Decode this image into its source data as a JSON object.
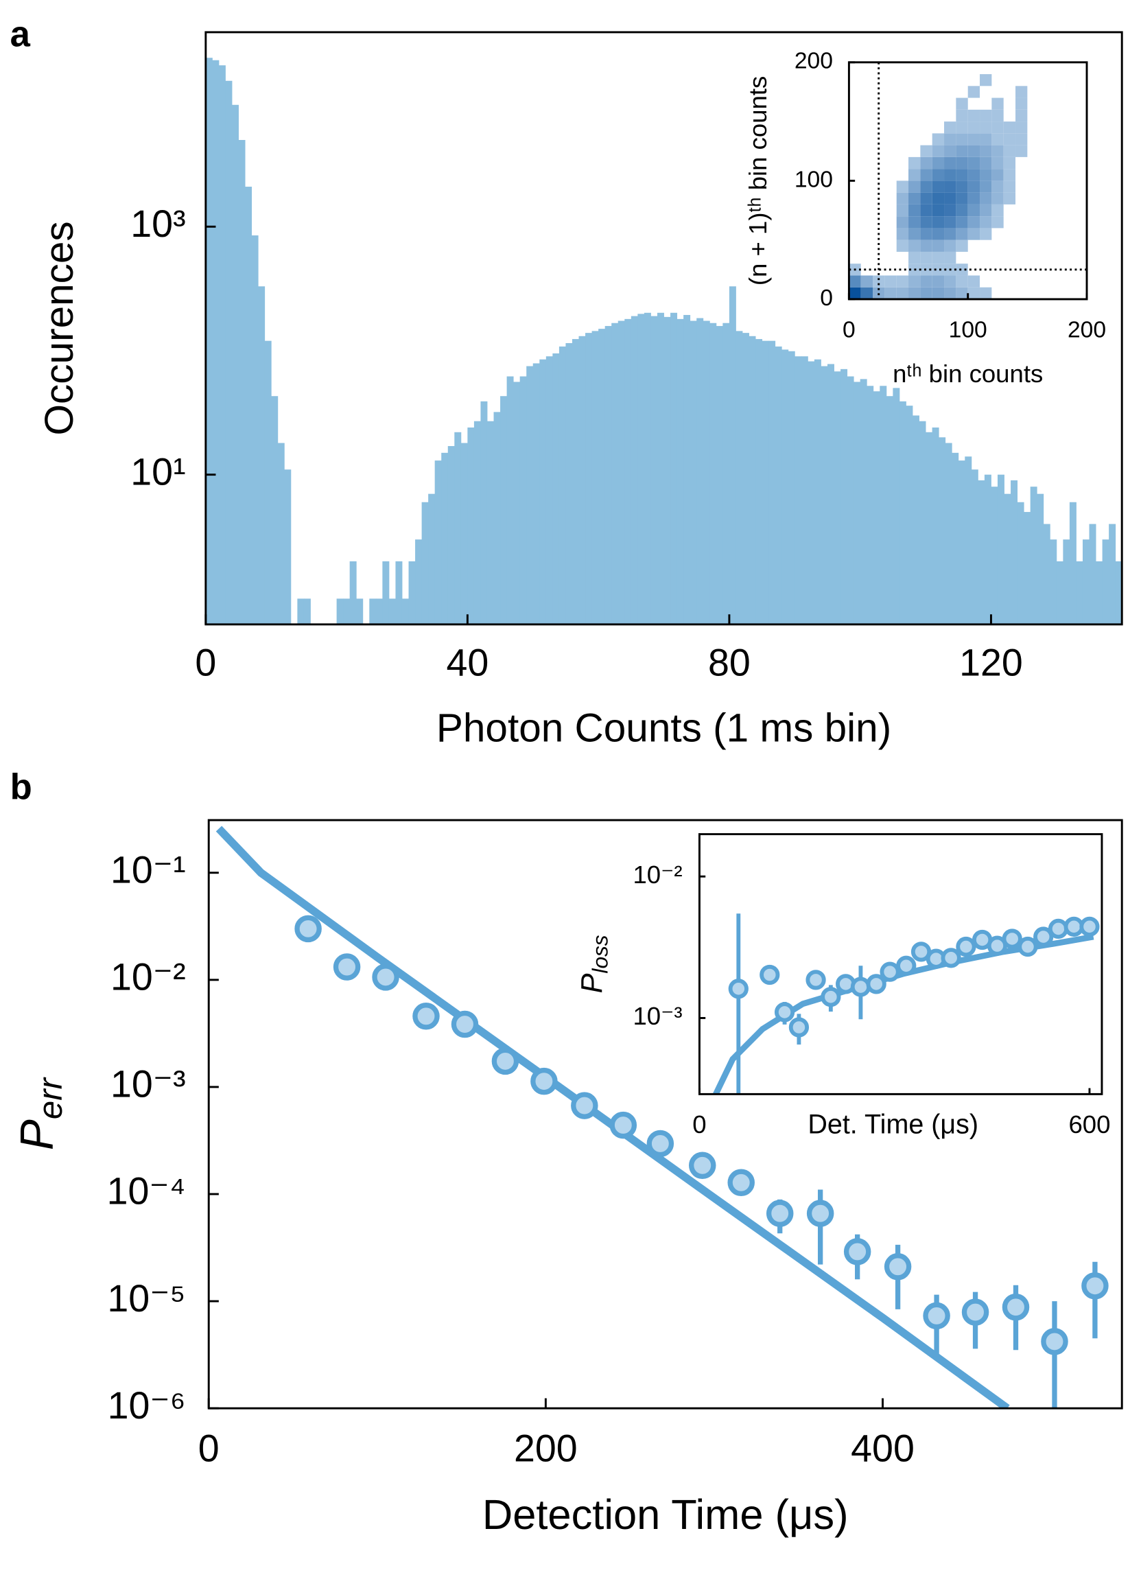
{
  "chart_data": [
    {
      "type": "histogram",
      "panel": "a",
      "xlabel": "Photon Counts (1 ms bin)",
      "ylabel": "Occurences",
      "yscale": "log",
      "color": "#8bbfdf",
      "bins": [
        0,
        1,
        2,
        3,
        4,
        5,
        6,
        7,
        8,
        9,
        10,
        11,
        12,
        13,
        14,
        15,
        16,
        17,
        18,
        19,
        20,
        21,
        22,
        23,
        24,
        25,
        26,
        27,
        28,
        29,
        30,
        31,
        32,
        33,
        34,
        35,
        36,
        37,
        38,
        39,
        40,
        41,
        42,
        43,
        44,
        45,
        46,
        47,
        48,
        49,
        50,
        51,
        52,
        53,
        54,
        55,
        56,
        57,
        58,
        59,
        60,
        61,
        62,
        63,
        64,
        65,
        66,
        67,
        68,
        69,
        70,
        71,
        72,
        73,
        74,
        75,
        76,
        77,
        78,
        79,
        80,
        81,
        82,
        83,
        84,
        85,
        86,
        87,
        88,
        89,
        90,
        91,
        92,
        93,
        94,
        95,
        96,
        97,
        98,
        99,
        100,
        101,
        102,
        103,
        104,
        105,
        106,
        107,
        108,
        109,
        110,
        111,
        112,
        113,
        114,
        115,
        116,
        117,
        118,
        119,
        120,
        121,
        122,
        123,
        124,
        125,
        126,
        127,
        128,
        129,
        130,
        131,
        132,
        133,
        134,
        135,
        136,
        137,
        138,
        139,
        140
      ],
      "counts": [
        23000,
        22000,
        20000,
        15000,
        9600,
        5000,
        2100,
        850,
        330,
        120,
        43,
        18,
        11,
        0,
        1,
        1,
        0,
        0,
        0,
        0,
        1,
        1,
        2,
        1,
        0,
        1,
        1,
        2,
        1,
        2,
        1,
        2,
        3,
        6,
        7,
        13,
        15,
        17,
        22,
        18,
        24,
        27,
        39,
        27,
        32,
        43,
        62,
        56,
        62,
        75,
        79,
        85,
        90,
        95,
        108,
        115,
        124,
        131,
        139,
        144,
        150,
        158,
        167,
        174,
        180,
        190,
        198,
        202,
        190,
        202,
        187,
        202,
        180,
        194,
        174,
        183,
        174,
        167,
        158,
        167,
        330,
        144,
        139,
        131,
        124,
        120,
        120,
        108,
        102,
        99,
        90,
        90,
        82,
        85,
        75,
        78,
        68,
        71,
        62,
        56,
        59,
        52,
        47,
        52,
        43,
        50,
        39,
        36,
        30,
        27,
        22,
        24,
        20,
        18,
        15,
        13,
        14,
        11,
        9,
        10,
        8,
        10,
        7,
        9,
        6,
        5,
        8,
        7,
        4,
        3,
        2,
        3,
        6,
        2,
        3,
        4,
        2,
        3,
        4,
        2
      ],
      "xlim": [
        0,
        140
      ],
      "ylim": [
        0.62,
        37000
      ],
      "xticks": [
        0,
        40,
        80,
        120
      ],
      "yticks": [
        {
          "value": 10,
          "label": "10¹"
        },
        {
          "value": 1000,
          "label": "10³"
        }
      ]
    },
    {
      "type": "heatmap",
      "xlabel": "nᵗʰ bin counts",
      "ylabel": "(n + 1)ᵗʰ bin counts",
      "colors": [
        "#c6dbef",
        "#08519c"
      ],
      "xbins": [
        0,
        10,
        20,
        30,
        40,
        50,
        60,
        70,
        80,
        90,
        100,
        110,
        120,
        130,
        140,
        150,
        160,
        170,
        180,
        190,
        200
      ],
      "ybins": [
        0,
        10,
        20,
        30,
        40,
        50,
        60,
        70,
        80,
        90,
        100,
        110,
        120,
        130,
        140,
        150,
        160,
        170,
        180,
        190,
        200
      ],
      "z": [
        [
          60,
          20,
          3,
          2,
          2,
          3,
          4,
          4,
          3,
          2,
          1,
          1,
          0,
          0,
          0,
          0,
          0,
          0,
          0,
          0
        ],
        [
          10,
          3,
          1,
          1,
          1,
          2,
          3,
          3,
          2,
          1,
          1,
          0,
          0,
          0,
          0,
          0,
          0,
          0,
          0,
          0
        ],
        [
          1,
          0,
          0,
          0,
          0,
          1,
          1,
          1,
          1,
          1,
          0,
          0,
          0,
          0,
          0,
          0,
          0,
          0,
          0,
          0
        ],
        [
          0,
          0,
          0,
          0,
          0,
          1,
          1,
          1,
          1,
          0,
          0,
          0,
          0,
          0,
          0,
          0,
          0,
          0,
          0,
          0
        ],
        [
          0,
          0,
          0,
          0,
          1,
          2,
          3,
          3,
          2,
          1,
          0,
          0,
          0,
          0,
          0,
          0,
          0,
          0,
          0,
          0
        ],
        [
          0,
          0,
          0,
          0,
          2,
          5,
          8,
          9,
          7,
          4,
          2,
          1,
          0,
          0,
          0,
          0,
          0,
          0,
          0,
          0
        ],
        [
          0,
          0,
          0,
          0,
          3,
          8,
          14,
          16,
          13,
          8,
          4,
          2,
          1,
          0,
          0,
          0,
          0,
          0,
          0,
          0
        ],
        [
          0,
          0,
          0,
          0,
          2,
          9,
          18,
          22,
          19,
          12,
          6,
          3,
          1,
          0,
          0,
          0,
          0,
          0,
          0,
          0
        ],
        [
          0,
          0,
          0,
          0,
          2,
          7,
          16,
          22,
          21,
          15,
          8,
          4,
          2,
          1,
          0,
          0,
          0,
          0,
          0,
          0
        ],
        [
          0,
          0,
          0,
          0,
          1,
          4,
          11,
          17,
          18,
          14,
          9,
          5,
          2,
          1,
          0,
          0,
          0,
          0,
          0,
          0
        ],
        [
          0,
          0,
          0,
          0,
          0,
          2,
          6,
          10,
          12,
          11,
          8,
          5,
          3,
          1,
          0,
          0,
          0,
          0,
          0,
          0
        ],
        [
          0,
          0,
          0,
          0,
          0,
          1,
          3,
          5,
          7,
          7,
          6,
          4,
          2,
          1,
          0,
          0,
          0,
          0,
          0,
          0
        ],
        [
          0,
          0,
          0,
          0,
          0,
          0,
          1,
          2,
          3,
          4,
          4,
          3,
          2,
          1,
          1,
          0,
          0,
          0,
          0,
          0
        ],
        [
          0,
          0,
          0,
          0,
          0,
          0,
          0,
          1,
          2,
          2,
          2,
          2,
          1,
          1,
          1,
          0,
          0,
          0,
          0,
          0
        ],
        [
          0,
          0,
          0,
          0,
          0,
          0,
          0,
          0,
          1,
          1,
          1,
          1,
          1,
          1,
          1,
          0,
          0,
          0,
          0,
          0
        ],
        [
          0,
          0,
          0,
          0,
          0,
          0,
          0,
          0,
          0,
          1,
          1,
          1,
          1,
          0,
          1,
          0,
          0,
          0,
          0,
          0
        ],
        [
          0,
          0,
          0,
          0,
          0,
          0,
          0,
          0,
          0,
          1,
          0,
          0,
          1,
          0,
          1,
          0,
          0,
          0,
          0,
          0
        ],
        [
          0,
          0,
          0,
          0,
          0,
          0,
          0,
          0,
          0,
          0,
          1,
          0,
          0,
          0,
          1,
          0,
          0,
          0,
          0,
          0
        ],
        [
          0,
          0,
          0,
          0,
          0,
          0,
          0,
          0,
          0,
          0,
          0,
          1,
          0,
          0,
          0,
          0,
          0,
          0,
          0,
          0
        ],
        [
          0,
          0,
          0,
          0,
          0,
          0,
          0,
          0,
          0,
          0,
          0,
          0,
          0,
          0,
          0,
          0,
          0,
          0,
          0,
          0
        ]
      ],
      "thresholds": {
        "x": 25,
        "y": 25
      },
      "xlim": [
        0,
        200
      ],
      "ylim": [
        0,
        200
      ],
      "xticks": [
        0,
        100,
        200
      ],
      "yticks": [
        0,
        100,
        200
      ]
    },
    {
      "type": "errorbar",
      "panel": "b",
      "xlabel": "Detection Time (μs)",
      "ylabel": "P",
      "ylabel_sub": "err",
      "yscale": "log",
      "color": "#5aa4d6",
      "marker_fill": "#b5d6ee",
      "x": [
        59,
        82,
        105,
        129,
        152,
        176,
        199,
        223,
        246,
        268,
        293,
        316,
        339,
        363,
        385,
        409,
        432,
        455,
        479,
        502,
        526
      ],
      "values": [
        0.03,
        0.0132,
        0.0106,
        0.00458,
        0.00385,
        0.00174,
        0.00113,
        0.00067,
        0.00044,
        0.000296,
        0.000185,
        0.000128,
        6.6e-05,
        6.6e-05,
        2.9e-05,
        2.1e-05,
        7.3e-06,
        7.9e-06,
        8.8e-06,
        4.2e-06,
        1.39e-05
      ],
      "errors": [
        0.0048,
        0.0021,
        0.002,
        0.00075,
        0.00073,
        0.00028,
        0.00018,
        0.00013,
        8e-05,
        6.4e-05,
        3.9e-05,
        2.4e-05,
        2.3e-05,
        4.4e-05,
        1.3e-05,
        1.26e-05,
        4.2e-06,
        4.3e-06,
        5.3e-06,
        5.8e-06,
        9.4e-06
      ],
      "fit": {
        "x": [
          6,
          31,
          100,
          200,
          300,
          400,
          474
        ],
        "values": [
          0.258,
          0.1,
          0.0163,
          0.00123,
          9.2e-05,
          7e-06,
          1e-06
        ]
      },
      "xlim": [
        0,
        542
      ],
      "ylim": [
        1e-06,
        0.31
      ],
      "xticks": [
        0,
        200,
        400
      ],
      "yticks": [
        {
          "value": 0.1,
          "label": "10⁻¹"
        },
        {
          "value": 0.01,
          "label": "10⁻²"
        },
        {
          "value": 0.001,
          "label": "10⁻³"
        },
        {
          "value": 0.0001,
          "label": "10⁻⁴"
        },
        {
          "value": 1e-05,
          "label": "10⁻⁵"
        },
        {
          "value": 1e-06,
          "label": "10⁻⁶"
        }
      ]
    },
    {
      "type": "errorbar",
      "xlabel": "Det. Time (μs)",
      "ylabel": "P",
      "ylabel_sub": "loss",
      "yscale": "log",
      "color": "#5aa4d6",
      "marker_fill": "#b5d6ee",
      "x": [
        60,
        108,
        131,
        153,
        179,
        202,
        225,
        248,
        272,
        293,
        318,
        341,
        364,
        387,
        410,
        435,
        458,
        481,
        505,
        529,
        552,
        576,
        600
      ],
      "values": [
        0.00161,
        0.00202,
        0.0011,
        0.00086,
        0.00186,
        0.00141,
        0.00174,
        0.00166,
        0.00174,
        0.00212,
        0.00234,
        0.00294,
        0.00262,
        0.00266,
        0.00319,
        0.00357,
        0.00324,
        0.00363,
        0.00319,
        0.00375,
        0.00427,
        0.00442,
        0.00442
      ],
      "errors": [
        0.00386,
        0.0002,
        0.0002,
        0.00021,
        0.0002,
        0.0003,
        0.00025,
        0.00068,
        0.0002,
        0.00015,
        0.0001,
        0.0001,
        0.0001,
        0.0001,
        0.0001,
        0.0001,
        0.0001,
        0.0001,
        0.0001,
        0.0001,
        0.0001,
        0.0001,
        0.0001
      ],
      "fit": {
        "x": [
          25,
          51,
          97,
          159,
          236,
          313,
          391,
          468,
          545,
          606
        ],
        "values": [
          0.000289,
          0.000512,
          0.000836,
          0.00126,
          0.00161,
          0.00205,
          0.00249,
          0.00294,
          0.00335,
          0.00375
        ]
      },
      "xlim": [
        0,
        619
      ],
      "ylim": [
        0.00029,
        0.0199
      ],
      "xticks": [
        0,
        600
      ],
      "yticks": [
        {
          "value": 0.01,
          "label": "10⁻²"
        },
        {
          "value": 0.001,
          "label": "10⁻³"
        }
      ]
    }
  ]
}
